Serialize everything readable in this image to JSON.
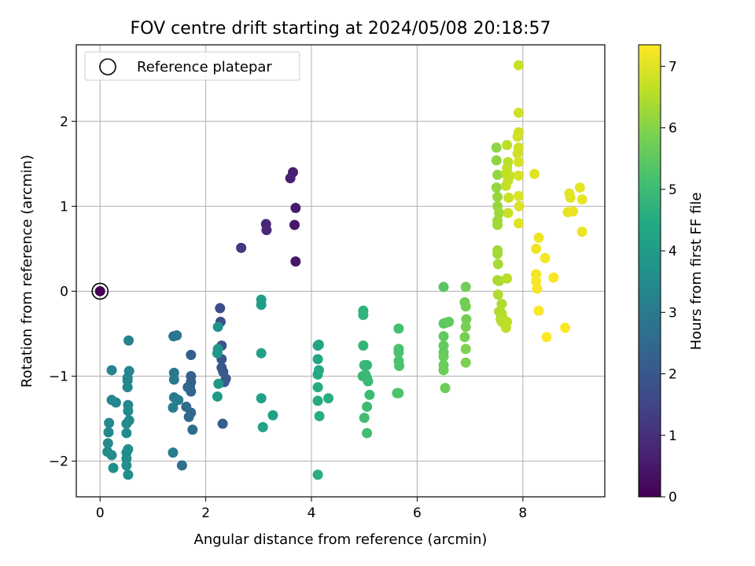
{
  "chart_data": {
    "type": "scatter",
    "title": "FOV centre drift starting at 2024/05/08 20:18:57",
    "xlabel": "Angular distance from reference (arcmin)",
    "ylabel": "Rotation from reference (arcmin)",
    "xlim": [
      -0.45,
      9.55
    ],
    "ylim": [
      -2.42,
      2.9
    ],
    "x_ticks": [
      0,
      2,
      4,
      6,
      8
    ],
    "y_ticks": [
      -2,
      -1,
      0,
      1,
      2
    ],
    "x_tick_labels": [
      "0",
      "2",
      "4",
      "6",
      "8"
    ],
    "y_tick_labels": [
      "−2",
      "−1",
      "0",
      "1",
      "2"
    ],
    "grid": true,
    "legend": {
      "placement": "top-left",
      "label": "Reference platepar"
    },
    "reference_point": {
      "x": 0,
      "y": 0
    },
    "colorbar": {
      "label": "Hours from first FF file",
      "colormap": "viridis",
      "range": [
        0,
        7.35
      ],
      "ticks": [
        0,
        1,
        2,
        3,
        4,
        5,
        6,
        7
      ],
      "tick_labels": [
        "0",
        "1",
        "2",
        "3",
        "4",
        "5",
        "6",
        "7"
      ]
    },
    "points": [
      [
        0,
        0,
        0.0
      ],
      [
        3.7,
        0.35,
        0.45
      ],
      [
        3.68,
        0.78,
        0.5
      ],
      [
        3.7,
        0.98,
        0.55
      ],
      [
        3.65,
        1.4,
        0.6
      ],
      [
        3.6,
        1.33,
        0.65
      ],
      [
        3.14,
        0.79,
        0.8
      ],
      [
        3.15,
        0.72,
        0.85
      ],
      [
        2.67,
        0.51,
        1.1
      ],
      [
        2.27,
        -0.2,
        1.75
      ],
      [
        2.28,
        -0.36,
        1.8
      ],
      [
        2.3,
        -0.64,
        1.9
      ],
      [
        2.3,
        -0.8,
        1.95
      ],
      [
        2.3,
        -0.9,
        2.0
      ],
      [
        2.33,
        -0.95,
        2.05
      ],
      [
        2.38,
        -1.03,
        2.1
      ],
      [
        2.35,
        -1.07,
        2.1
      ],
      [
        2.32,
        -1.56,
        2.2
      ],
      [
        1.72,
        -0.75,
        2.2
      ],
      [
        1.72,
        -1.0,
        2.25
      ],
      [
        1.72,
        -1.07,
        2.3
      ],
      [
        1.7,
        -1.13,
        2.35
      ],
      [
        1.66,
        -1.13,
        2.4
      ],
      [
        1.72,
        -1.18,
        2.4
      ],
      [
        1.72,
        -1.43,
        2.45
      ],
      [
        1.68,
        -1.48,
        2.5
      ],
      [
        1.63,
        -1.36,
        2.55
      ],
      [
        1.75,
        -1.63,
        2.6
      ],
      [
        1.55,
        -2.05,
        2.7
      ],
      [
        1.39,
        -0.53,
        2.85
      ],
      [
        1.45,
        -0.52,
        2.9
      ],
      [
        1.4,
        -0.96,
        2.95
      ],
      [
        1.4,
        -1.04,
        3.0
      ],
      [
        1.4,
        -1.25,
        3.0
      ],
      [
        1.38,
        -1.37,
        3.05
      ],
      [
        1.48,
        -1.28,
        3.1
      ],
      [
        1.38,
        -1.9,
        3.1
      ],
      [
        0.54,
        -0.58,
        3.25
      ],
      [
        0.55,
        -0.94,
        3.3
      ],
      [
        0.52,
        -1.02,
        3.35
      ],
      [
        0.52,
        -1.05,
        3.35
      ],
      [
        0.52,
        -1.13,
        3.4
      ],
      [
        0.53,
        -1.34,
        3.4
      ],
      [
        0.53,
        -1.41,
        3.45
      ],
      [
        0.55,
        -1.52,
        3.45
      ],
      [
        0.5,
        -1.56,
        3.5
      ],
      [
        0.5,
        -1.67,
        3.5
      ],
      [
        0.53,
        -1.86,
        3.55
      ],
      [
        0.5,
        -1.9,
        3.55
      ],
      [
        0.5,
        -1.97,
        3.6
      ],
      [
        0.5,
        -2.05,
        3.6
      ],
      [
        0.53,
        -2.16,
        3.6
      ],
      [
        0.3,
        -1.31,
        3.3
      ],
      [
        0.22,
        -1.28,
        3.35
      ],
      [
        0.22,
        -0.93,
        3.3
      ],
      [
        0.17,
        -1.55,
        3.45
      ],
      [
        0.16,
        -1.66,
        3.45
      ],
      [
        0.15,
        -1.79,
        3.5
      ],
      [
        0.14,
        -1.89,
        3.5
      ],
      [
        0.22,
        -1.93,
        3.55
      ],
      [
        0.25,
        -2.08,
        3.6
      ],
      [
        2.23,
        -0.42,
        3.8
      ],
      [
        2.23,
        -0.68,
        3.85
      ],
      [
        2.22,
        -0.73,
        3.85
      ],
      [
        2.24,
        -1.09,
        3.9
      ],
      [
        2.22,
        -1.24,
        3.95
      ],
      [
        3.05,
        -0.1,
        4.05
      ],
      [
        3.05,
        -0.16,
        4.1
      ],
      [
        3.05,
        -0.73,
        4.15
      ],
      [
        3.05,
        -1.26,
        4.2
      ],
      [
        3.08,
        -1.6,
        4.25
      ],
      [
        3.27,
        -1.46,
        4.2
      ],
      [
        4.12,
        -0.64,
        4.3
      ],
      [
        4.14,
        -0.63,
        4.35
      ],
      [
        4.12,
        -0.8,
        4.4
      ],
      [
        4.14,
        -0.93,
        4.45
      ],
      [
        4.12,
        -0.98,
        4.45
      ],
      [
        4.12,
        -1.13,
        4.5
      ],
      [
        4.12,
        -1.29,
        4.5
      ],
      [
        4.15,
        -1.47,
        4.55
      ],
      [
        4.32,
        -1.26,
        4.55
      ],
      [
        4.12,
        -2.16,
        4.6
      ],
      [
        4.98,
        -0.23,
        4.7
      ],
      [
        4.98,
        -0.28,
        4.75
      ],
      [
        4.98,
        -0.64,
        4.8
      ],
      [
        5.0,
        -0.87,
        4.85
      ],
      [
        5.05,
        -0.87,
        4.85
      ],
      [
        4.97,
        -1.0,
        4.9
      ],
      [
        5.02,
        -0.98,
        4.9
      ],
      [
        5.05,
        -1.02,
        4.95
      ],
      [
        5.07,
        -1.06,
        4.95
      ],
      [
        5.1,
        -1.22,
        5.0
      ],
      [
        5.05,
        -1.36,
        5.0
      ],
      [
        5.0,
        -1.49,
        5.05
      ],
      [
        5.05,
        -1.67,
        5.05
      ],
      [
        5.65,
        -0.44,
        5.15
      ],
      [
        5.65,
        -0.68,
        5.2
      ],
      [
        5.65,
        -0.72,
        5.2
      ],
      [
        5.65,
        -0.82,
        5.25
      ],
      [
        5.66,
        -0.88,
        5.25
      ],
      [
        5.65,
        -1.2,
        5.3
      ],
      [
        5.62,
        -1.2,
        5.3
      ],
      [
        6.5,
        0.05,
        5.45
      ],
      [
        6.5,
        -0.38,
        5.5
      ],
      [
        6.55,
        -0.37,
        5.5
      ],
      [
        6.6,
        -0.36,
        5.55
      ],
      [
        6.5,
        -0.53,
        5.55
      ],
      [
        6.5,
        -0.64,
        5.6
      ],
      [
        6.5,
        -0.72,
        5.6
      ],
      [
        6.5,
        -0.77,
        5.65
      ],
      [
        6.5,
        -0.87,
        5.65
      ],
      [
        6.5,
        -0.93,
        5.7
      ],
      [
        6.53,
        -1.14,
        5.7
      ],
      [
        6.92,
        0.05,
        5.75
      ],
      [
        6.9,
        -0.13,
        5.75
      ],
      [
        6.92,
        -0.18,
        5.8
      ],
      [
        6.93,
        -0.33,
        5.8
      ],
      [
        6.92,
        -0.42,
        5.85
      ],
      [
        6.9,
        -0.54,
        5.85
      ],
      [
        6.92,
        -0.68,
        5.9
      ],
      [
        6.92,
        -0.84,
        5.9
      ],
      [
        7.5,
        1.69,
        6.1
      ],
      [
        7.5,
        1.54,
        6.1
      ],
      [
        7.52,
        1.37,
        6.15
      ],
      [
        7.5,
        1.22,
        6.15
      ],
      [
        7.52,
        1.11,
        6.2
      ],
      [
        7.52,
        1.0,
        6.2
      ],
      [
        7.55,
        0.92,
        6.25
      ],
      [
        7.52,
        0.83,
        6.25
      ],
      [
        7.52,
        0.78,
        6.3
      ],
      [
        7.52,
        0.48,
        6.3
      ],
      [
        7.52,
        0.44,
        6.35
      ],
      [
        7.53,
        0.32,
        6.35
      ],
      [
        7.52,
        0.13,
        6.4
      ],
      [
        7.55,
        0.12,
        6.4
      ],
      [
        7.53,
        -0.04,
        6.45
      ],
      [
        7.6,
        -0.15,
        6.45
      ],
      [
        7.55,
        -0.24,
        6.5
      ],
      [
        7.6,
        -0.26,
        6.5
      ],
      [
        7.58,
        -0.33,
        6.5
      ],
      [
        7.63,
        -0.33,
        6.55
      ],
      [
        7.6,
        -0.36,
        6.55
      ],
      [
        7.7,
        -0.36,
        6.6
      ],
      [
        7.68,
        -0.43,
        6.6
      ],
      [
        7.7,
        0.15,
        6.55
      ],
      [
        7.7,
        1.72,
        6.6
      ],
      [
        7.72,
        1.52,
        6.6
      ],
      [
        7.7,
        1.45,
        6.65
      ],
      [
        7.68,
        1.38,
        6.65
      ],
      [
        7.75,
        1.36,
        6.7
      ],
      [
        7.72,
        1.3,
        6.7
      ],
      [
        7.68,
        1.24,
        6.7
      ],
      [
        7.73,
        1.1,
        6.75
      ],
      [
        7.72,
        0.92,
        6.75
      ],
      [
        7.92,
        2.66,
        6.75
      ],
      [
        7.92,
        2.1,
        6.8
      ],
      [
        7.92,
        1.87,
        6.8
      ],
      [
        7.9,
        1.82,
        6.85
      ],
      [
        7.92,
        1.69,
        6.85
      ],
      [
        7.9,
        1.62,
        6.85
      ],
      [
        7.92,
        1.52,
        6.9
      ],
      [
        7.92,
        1.36,
        6.9
      ],
      [
        7.92,
        1.12,
        6.95
      ],
      [
        7.93,
        1.0,
        6.95
      ],
      [
        7.92,
        0.8,
        7.0
      ],
      [
        8.22,
        1.38,
        7.0
      ],
      [
        8.88,
        1.15,
        7.05
      ],
      [
        8.9,
        1.1,
        7.05
      ],
      [
        9.08,
        1.22,
        7.1
      ],
      [
        9.12,
        1.08,
        7.1
      ],
      [
        8.85,
        0.93,
        7.1
      ],
      [
        8.95,
        0.94,
        7.15
      ],
      [
        9.12,
        0.7,
        7.15
      ],
      [
        8.3,
        0.63,
        7.2
      ],
      [
        8.25,
        0.5,
        7.2
      ],
      [
        8.42,
        0.39,
        7.25
      ],
      [
        8.25,
        0.2,
        7.25
      ],
      [
        8.25,
        0.12,
        7.25
      ],
      [
        8.27,
        0.03,
        7.3
      ],
      [
        8.58,
        0.16,
        7.3
      ],
      [
        8.3,
        -0.23,
        7.3
      ],
      [
        8.45,
        -0.54,
        7.35
      ],
      [
        8.8,
        -0.43,
        7.35
      ]
    ]
  }
}
